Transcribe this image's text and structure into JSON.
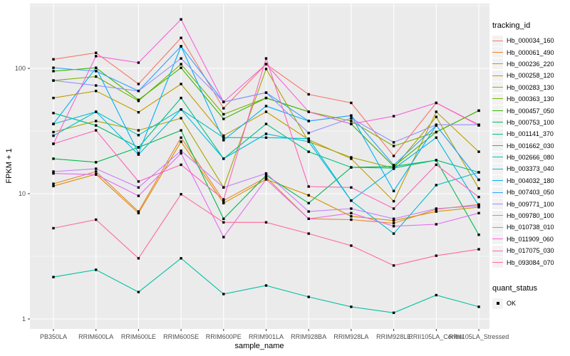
{
  "chart_data": {
    "type": "line",
    "xlabel": "sample_name",
    "ylabel": "FPKM + 1",
    "y_scale": "log10",
    "y_ticks": [
      1,
      10,
      100
    ],
    "y_minor_ticks": [
      3.162,
      31.62,
      316.2
    ],
    "ylim": [
      0.83,
      330
    ],
    "grid": true,
    "panel_bg": "#EBEBEB",
    "grid_color": "#FFFFFF",
    "tick_label_color": "#4D4D4D",
    "point_shape": "square",
    "point_color": "#000000",
    "legend_position": "right",
    "legend_titles": {
      "tracking": "tracking_id",
      "quant": "quant_status"
    },
    "quant_items": [
      {
        "label": "OK",
        "color": "#000000"
      }
    ],
    "categories": [
      "PB350LA",
      "RRIM600LA",
      "RRIM600LE",
      "RRIM600SE",
      "RRIM600PE",
      "RRIM901LA",
      "RRIM928BA",
      "RRIM928LA",
      "RRIM928LE",
      "RRII105LA_Control",
      "RRII105LA_Stressed"
    ],
    "series": [
      {
        "name": "Hb_000034_160",
        "color": "#F8766D",
        "values": [
          118,
          133,
          75,
          175,
          48,
          108,
          62,
          53,
          20,
          53,
          35
        ]
      },
      {
        "name": "Hb_000061_490",
        "color": "#EA8331",
        "values": [
          12,
          15,
          7.2,
          28,
          8.8,
          13.5,
          6.3,
          6.2,
          5.8,
          7.5,
          8.2
        ]
      },
      {
        "name": "Hb_000236_220",
        "color": "#D89000",
        "values": [
          11.5,
          14.3,
          7.0,
          26,
          8.4,
          13,
          9.7,
          6.6,
          6.1,
          7.2,
          7.8
        ]
      },
      {
        "name": "Hb_000258_120",
        "color": "#C09B00",
        "values": [
          58,
          66,
          44.6,
          75,
          29,
          45,
          27,
          19,
          8.7,
          45,
          21.6
        ]
      },
      {
        "name": "Hb_000283_130",
        "color": "#A3A500",
        "values": [
          31,
          38,
          32,
          40,
          11.2,
          99,
          26,
          19.5,
          16,
          41,
          11
        ]
      },
      {
        "name": "Hb_000363_130",
        "color": "#7CAE00",
        "values": [
          80,
          86,
          55,
          108,
          43,
          58,
          45,
          38,
          24,
          31,
          46
        ]
      },
      {
        "name": "Hb_000457_050",
        "color": "#39B600",
        "values": [
          95,
          101,
          56,
          101,
          39.5,
          58,
          45,
          36,
          16.5,
          31,
          46
        ]
      },
      {
        "name": "Hb_000753_100",
        "color": "#00BB4E",
        "values": [
          19,
          17.8,
          23.4,
          32,
          6.3,
          14,
          8.4,
          16.2,
          16.5,
          18.5,
          4.7
        ]
      },
      {
        "name": "Hb_001141_370",
        "color": "#00BF7D",
        "values": [
          44,
          35,
          23.4,
          58,
          19,
          36,
          21.6,
          16.2,
          16,
          18.5,
          14.8
        ]
      },
      {
        "name": "Hb_001662_030",
        "color": "#00C1A3",
        "values": [
          2.16,
          2.47,
          1.64,
          3.05,
          1.58,
          1.85,
          1.5,
          1.25,
          1.12,
          1.55,
          1.25
        ]
      },
      {
        "name": "Hb_002666_080",
        "color": "#00BFC4",
        "values": [
          29,
          45,
          29.3,
          47,
          28,
          28,
          27.5,
          8.8,
          4.8,
          11.7,
          14.8
        ]
      },
      {
        "name": "Hb_003373_040",
        "color": "#00BAE0",
        "values": [
          36,
          45,
          20.5,
          47,
          19,
          30,
          26,
          8.8,
          15.8,
          28,
          8.0
        ]
      },
      {
        "name": "Hb_004032_180",
        "color": "#00B0F6",
        "values": [
          36,
          101,
          21,
          150,
          26.7,
          50,
          38,
          42,
          10.5,
          35,
          12.9
        ]
      },
      {
        "name": "Hb_007403_050",
        "color": "#35A2FF",
        "values": [
          101,
          95,
          66,
          150,
          54,
          64,
          38,
          42,
          16.9,
          35,
          12.9
        ]
      },
      {
        "name": "Hb_009771_100",
        "color": "#9590FF",
        "values": [
          80,
          73,
          66,
          120,
          54,
          64,
          30.5,
          40,
          25.7,
          35.5,
          35.5
        ]
      },
      {
        "name": "Hb_009780_100",
        "color": "#C77CFF",
        "values": [
          15,
          15.8,
          11.2,
          22,
          11.2,
          14.5,
          7.2,
          7.6,
          6.3,
          7.6,
          8.0
        ]
      },
      {
        "name": "Hb_010738_010",
        "color": "#E76BF3",
        "values": [
          14.5,
          14.2,
          9.6,
          21,
          4.5,
          13,
          6.3,
          7.0,
          5.5,
          5.7,
          7.0
        ]
      },
      {
        "name": "Hb_011909_060",
        "color": "#FA62DB",
        "values": [
          25,
          125,
          111,
          246,
          54,
          108,
          45,
          36,
          41.5,
          53,
          35.5
        ]
      },
      {
        "name": "Hb_017075_030",
        "color": "#FF62BC",
        "values": [
          25,
          32,
          12.5,
          17,
          9,
          120,
          11.4,
          11.2,
          7.6,
          17,
          9.4
        ]
      },
      {
        "name": "Hb_093084_070",
        "color": "#FF6A98",
        "values": [
          5.3,
          6.2,
          3.05,
          9.9,
          5.9,
          5.9,
          4.8,
          3.85,
          2.67,
          3.2,
          3.6
        ]
      }
    ]
  }
}
